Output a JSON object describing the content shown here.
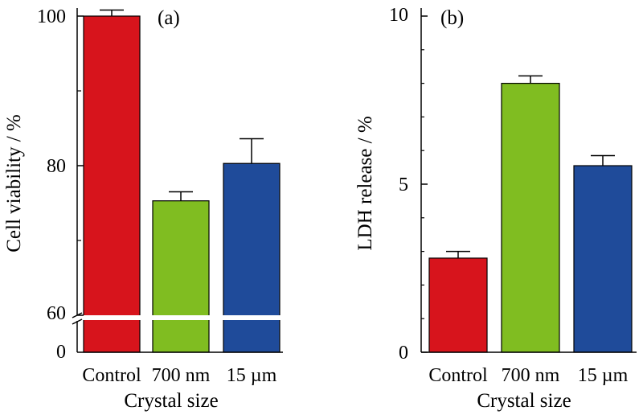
{
  "chart_data": [
    {
      "type": "bar",
      "panel_label": "(a)",
      "categories": [
        "Control",
        "700 nm",
        "15 µm"
      ],
      "values": [
        100.0,
        75.3,
        80.3
      ],
      "errors": [
        0.8,
        1.2,
        3.3
      ],
      "colors": [
        "#d7141c",
        "#80bd21",
        "#1f4b9a"
      ],
      "xlabel": "Crystal size",
      "ylabel": "Cell viability / %",
      "axis_break": {
        "lower_ticks": [
          0
        ],
        "upper_ticks": [
          60,
          80,
          100
        ],
        "upper_range": [
          60,
          100
        ]
      },
      "yticks": [
        "0",
        "60",
        "80",
        "100"
      ],
      "grid": false
    },
    {
      "type": "bar",
      "panel_label": "(b)",
      "categories": [
        "Control",
        "700 nm",
        "15 µm"
      ],
      "values": [
        2.8,
        8.0,
        5.55
      ],
      "errors": [
        0.2,
        0.22,
        0.3
      ],
      "colors": [
        "#d7141c",
        "#80bd21",
        "#1f4b9a"
      ],
      "xlabel": "Crystal size",
      "ylabel": "LDH release / %",
      "ylim": [
        0,
        10
      ],
      "yticks": [
        "0",
        "5",
        "10"
      ],
      "grid": false
    }
  ]
}
